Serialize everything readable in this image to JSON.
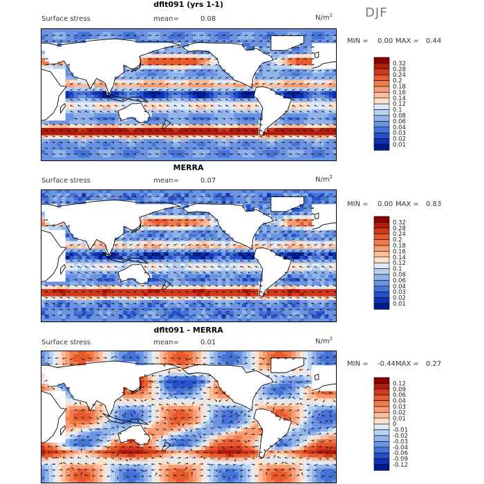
{
  "season": "DJF",
  "panels": [
    {
      "title": "dflt091 (yrs 1-1)",
      "variable": "Surface stress",
      "mean_label": "mean=",
      "mean_value": "0.08",
      "units": "N/m",
      "units_sup": "2",
      "min_label": "MIN =",
      "min_value": "0.00",
      "max_label": "MAX =",
      "max_value": "0.44",
      "colorbar_labels": [
        "0.32",
        "0.28",
        "0.24",
        "0.2",
        "0.18",
        "0.16",
        "0.14",
        "0.12",
        "0.1",
        "0.08",
        "0.06",
        "0.04",
        "0.03",
        "0.02",
        "0.01"
      ],
      "colorbar_colors": [
        "#8b0000",
        "#b11b0e",
        "#cf3a1c",
        "#e65a2e",
        "#f07c4c",
        "#f79b72",
        "#fbbd9d",
        "#fde1cc",
        "#dfeaf8",
        "#b8d0f2",
        "#8fb3ea",
        "#6a93e1",
        "#4573d8",
        "#2552cc",
        "#0c32b5",
        "#001c8c"
      ],
      "anomaly": false
    },
    {
      "title": "MERRA",
      "variable": "Surface stress",
      "mean_label": "mean=",
      "mean_value": "0.07",
      "units": "N/m",
      "units_sup": "2",
      "min_label": "MIN =",
      "min_value": "0.00",
      "max_label": "MAX =",
      "max_value": "0.83",
      "colorbar_labels": [
        "0.32",
        "0.28",
        "0.24",
        "0.2",
        "0.18",
        "0.16",
        "0.14",
        "0.12",
        "0.1",
        "0.08",
        "0.06",
        "0.04",
        "0.03",
        "0.02",
        "0.01"
      ],
      "colorbar_colors": [
        "#8b0000",
        "#b11b0e",
        "#cf3a1c",
        "#e65a2e",
        "#f07c4c",
        "#f79b72",
        "#fbbd9d",
        "#fde1cc",
        "#dfeaf8",
        "#b8d0f2",
        "#8fb3ea",
        "#6a93e1",
        "#4573d8",
        "#2552cc",
        "#0c32b5",
        "#001c8c"
      ],
      "anomaly": false
    },
    {
      "title": "dflt091 - MERRA",
      "variable": "Surface stress",
      "mean_label": "mean=",
      "mean_value": "0.01",
      "units": "N/m",
      "units_sup": "2",
      "min_label": "MIN =",
      "min_value": "-0.44",
      "max_label": "MAX =",
      "max_value": "0.27",
      "colorbar_labels": [
        "0.12",
        "0.09",
        "0.06",
        "0.04",
        "0.03",
        "0.02",
        "0.01",
        "0",
        "-0.01",
        "-0.02",
        "-0.03",
        "-0.04",
        "-0.06",
        "-0.09",
        "-0.12"
      ],
      "colorbar_colors": [
        "#8b0000",
        "#b11b0e",
        "#cf3a1c",
        "#e65a2e",
        "#f07c4c",
        "#f79b72",
        "#fbbd9d",
        "#fde1cc",
        "#dfeaf8",
        "#b8d0f2",
        "#8fb3ea",
        "#6a93e1",
        "#4573d8",
        "#2552cc",
        "#0c32b5",
        "#001c8c"
      ],
      "anomaly": true
    }
  ]
}
